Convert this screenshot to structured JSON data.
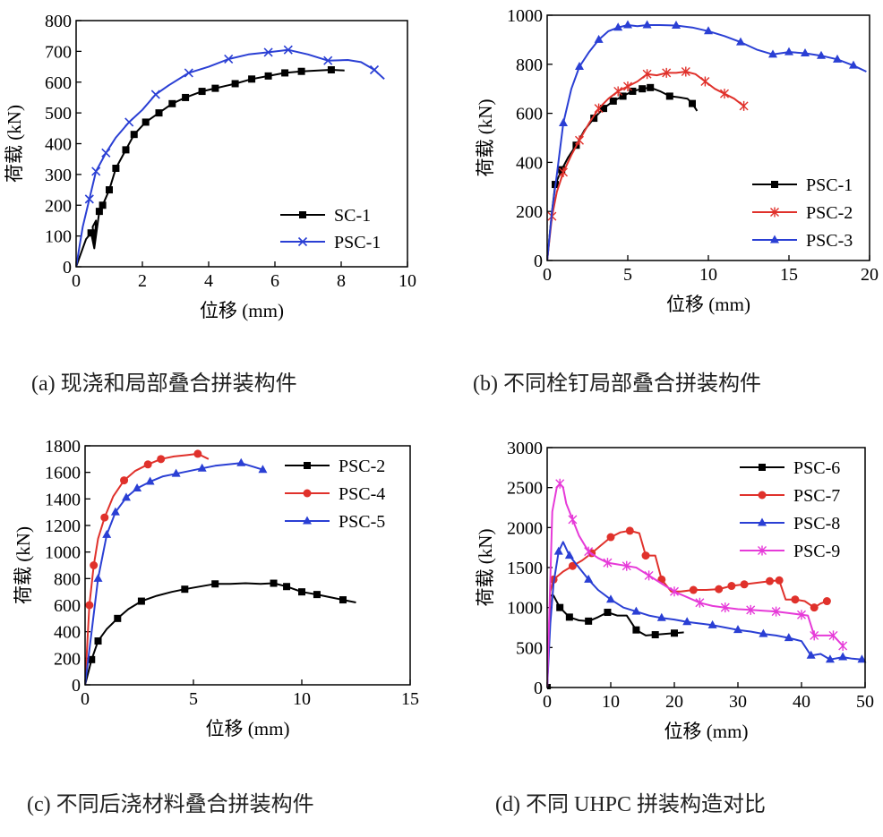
{
  "figure": {
    "captions": {
      "a": "(a) 现浇和局部叠合拼装构件",
      "b": "(b) 不同栓钉局部叠合拼装构件",
      "c": "(c) 不同后浇材料叠合拼装构件",
      "d": "(d) 不同 UHPC 拼装构造对比"
    }
  },
  "chart_data": [
    {
      "id": "a",
      "type": "line",
      "xlabel": "位移 (mm)",
      "ylabel": "荷载 (kN)",
      "xlim": [
        0,
        10
      ],
      "ylim": [
        0,
        800
      ],
      "xticks": [
        0,
        2,
        4,
        6,
        8,
        10
      ],
      "yticks": [
        0,
        100,
        200,
        300,
        400,
        500,
        600,
        700,
        800
      ],
      "legend_position": "bottom-right",
      "series": [
        {
          "name": "SC-1",
          "color": "#000000",
          "marker": "square",
          "x": [
            0,
            0.1,
            0.2,
            0.3,
            0.45,
            0.55,
            0.5,
            0.6,
            0.55,
            0.7,
            0.8,
            1.0,
            1.2,
            1.5,
            1.75,
            2.1,
            2.5,
            2.9,
            3.3,
            3.8,
            4.2,
            4.8,
            5.3,
            5.8,
            6.3,
            6.8,
            7.3,
            7.7,
            8.1
          ],
          "y": [
            0,
            30,
            60,
            90,
            110,
            60,
            130,
            150,
            60,
            180,
            200,
            250,
            320,
            380,
            430,
            470,
            500,
            530,
            550,
            570,
            580,
            595,
            610,
            620,
            630,
            635,
            638,
            640,
            638
          ],
          "marker_indices": [
            4,
            9,
            10,
            11,
            12,
            13,
            14,
            15,
            16,
            17,
            18,
            19,
            20,
            21,
            22,
            23,
            24,
            25,
            27
          ]
        },
        {
          "name": "PSC-1",
          "color": "#2a3fd4",
          "marker": "x",
          "x": [
            0,
            0.2,
            0.4,
            0.6,
            0.9,
            1.2,
            1.6,
            2.0,
            2.4,
            2.8,
            3.4,
            4.0,
            4.6,
            5.2,
            5.8,
            6.4,
            7.0,
            7.6,
            8.2,
            8.6,
            9.0,
            9.3
          ],
          "y": [
            0,
            130,
            220,
            310,
            370,
            420,
            470,
            510,
            560,
            590,
            630,
            650,
            675,
            690,
            697,
            705,
            690,
            670,
            672,
            665,
            640,
            610
          ],
          "marker_indices": [
            2,
            3,
            4,
            6,
            8,
            10,
            12,
            14,
            15,
            17,
            20
          ]
        }
      ]
    },
    {
      "id": "b",
      "type": "line",
      "xlabel": "位移 (mm)",
      "ylabel": "荷载 (kN)",
      "xlim": [
        0,
        20
      ],
      "ylim": [
        0,
        1000
      ],
      "xticks": [
        0,
        5,
        10,
        15,
        20
      ],
      "yticks": [
        0,
        200,
        400,
        600,
        800,
        1000
      ],
      "legend_position": "bottom-right",
      "series": [
        {
          "name": "PSC-1",
          "color": "#000000",
          "marker": "square",
          "x": [
            0,
            0.3,
            0.5,
            0.9,
            1.3,
            1.8,
            2.3,
            2.9,
            3.5,
            4.1,
            4.7,
            5.3,
            5.9,
            6.4,
            7.0,
            7.6,
            8.2,
            8.7,
            9.0,
            9.3
          ],
          "y": [
            0,
            200,
            310,
            370,
            420,
            470,
            530,
            580,
            620,
            650,
            670,
            690,
            700,
            705,
            690,
            670,
            665,
            660,
            640,
            610
          ],
          "marker_indices": [
            2,
            3,
            5,
            7,
            8,
            9,
            10,
            11,
            12,
            13,
            15,
            18
          ]
        },
        {
          "name": "PSC-2",
          "color": "#e0312b",
          "marker": "asterisk",
          "x": [
            0,
            0.3,
            0.6,
            1.0,
            1.5,
            2.0,
            2.6,
            3.2,
            3.8,
            4.4,
            5.0,
            5.6,
            6.2,
            6.8,
            7.4,
            8.0,
            8.6,
            9.2,
            9.8,
            10.4,
            11.0,
            11.6,
            12.2
          ],
          "y": [
            0,
            180,
            280,
            360,
            430,
            490,
            560,
            620,
            660,
            690,
            710,
            730,
            760,
            755,
            765,
            765,
            770,
            760,
            730,
            700,
            680,
            660,
            630
          ],
          "marker_indices": [
            1,
            3,
            5,
            7,
            9,
            10,
            12,
            14,
            16,
            18,
            20,
            22
          ]
        },
        {
          "name": "PSC-3",
          "color": "#2a3fd4",
          "marker": "triangle",
          "x": [
            0,
            0.3,
            0.6,
            1.0,
            1.5,
            2.0,
            2.6,
            3.2,
            3.8,
            4.4,
            5.0,
            5.6,
            6.2,
            7.0,
            8.0,
            9.0,
            10.0,
            11.0,
            12.0,
            13.0,
            14.0,
            15.0,
            16.0,
            17.0,
            18.0,
            19.0,
            19.8
          ],
          "y": [
            0,
            200,
            350,
            560,
            700,
            790,
            850,
            900,
            935,
            950,
            960,
            955,
            960,
            960,
            958,
            950,
            935,
            915,
            890,
            860,
            840,
            850,
            845,
            835,
            820,
            795,
            770
          ],
          "marker_indices": [
            3,
            5,
            7,
            9,
            10,
            12,
            14,
            16,
            18,
            20,
            21,
            22,
            23,
            24,
            25
          ]
        }
      ]
    },
    {
      "id": "c",
      "type": "line",
      "xlabel": "位移 (mm)",
      "ylabel": "荷载 (kN)",
      "xlim": [
        0,
        15
      ],
      "ylim": [
        0,
        1800
      ],
      "xticks": [
        0,
        5,
        10,
        15
      ],
      "yticks": [
        0,
        200,
        400,
        600,
        800,
        1000,
        1200,
        1400,
        1600,
        1800
      ],
      "legend_position": "top-right",
      "series": [
        {
          "name": "PSC-2",
          "color": "#000000",
          "marker": "square",
          "x": [
            0,
            0.3,
            0.6,
            1.0,
            1.5,
            2.0,
            2.6,
            3.3,
            4.0,
            4.6,
            5.3,
            6.0,
            6.7,
            7.4,
            8.1,
            8.7,
            9.3,
            10.0,
            10.7,
            11.3,
            11.9,
            12.5
          ],
          "y": [
            0,
            190,
            330,
            420,
            500,
            570,
            630,
            670,
            700,
            720,
            740,
            760,
            760,
            765,
            760,
            765,
            740,
            700,
            680,
            660,
            640,
            620
          ],
          "marker_indices": [
            1,
            2,
            4,
            6,
            9,
            11,
            15,
            16,
            17,
            18,
            20
          ]
        },
        {
          "name": "PSC-4",
          "color": "#e0312b",
          "marker": "circle",
          "x": [
            0,
            0.2,
            0.4,
            0.6,
            0.9,
            1.3,
            1.8,
            2.3,
            2.9,
            3.5,
            4.1,
            4.7,
            5.2,
            5.7
          ],
          "y": [
            0,
            600,
            900,
            1100,
            1260,
            1420,
            1540,
            1610,
            1660,
            1700,
            1720,
            1730,
            1740,
            1700
          ],
          "marker_indices": [
            1,
            2,
            4,
            6,
            8,
            9,
            12
          ]
        },
        {
          "name": "PSC-5",
          "color": "#2a3fd4",
          "marker": "triangle",
          "x": [
            0,
            0.3,
            0.6,
            1.0,
            1.4,
            1.9,
            2.4,
            3.0,
            3.6,
            4.2,
            4.8,
            5.4,
            6.0,
            6.6,
            7.2,
            7.8,
            8.2
          ],
          "y": [
            0,
            400,
            800,
            1130,
            1300,
            1410,
            1480,
            1530,
            1570,
            1590,
            1610,
            1630,
            1650,
            1660,
            1670,
            1640,
            1620
          ],
          "marker_indices": [
            2,
            3,
            4,
            5,
            6,
            7,
            9,
            11,
            14,
            16
          ]
        }
      ]
    },
    {
      "id": "d",
      "type": "line",
      "xlabel": "位移 (mm)",
      "ylabel": "荷载 (kN)",
      "xlim": [
        0,
        50
      ],
      "ylim": [
        0,
        3000
      ],
      "xticks": [
        0,
        10,
        20,
        30,
        40,
        50
      ],
      "yticks": [
        0,
        500,
        1000,
        1500,
        2000,
        2500,
        3000
      ],
      "legend_position": "top-right",
      "series": [
        {
          "name": "PSC-6",
          "color": "#000000",
          "marker": "square",
          "x": [
            0,
            0.5,
            1.0,
            2.0,
            3.5,
            5.0,
            6.5,
            8.0,
            9.5,
            11.0,
            12.5,
            14.0,
            15.5,
            17.0,
            18.5,
            20.0,
            21.5
          ],
          "y": [
            0,
            1150,
            1150,
            1000,
            880,
            840,
            830,
            880,
            940,
            900,
            900,
            720,
            650,
            660,
            670,
            680,
            690
          ],
          "marker_indices": [
            0,
            3,
            4,
            6,
            8,
            11,
            13,
            15
          ]
        },
        {
          "name": "PSC-7",
          "color": "#e0312b",
          "marker": "circle",
          "x": [
            0,
            0.5,
            1.0,
            2.5,
            4.0,
            5.5,
            7.0,
            8.5,
            10.0,
            11.5,
            13.0,
            14.5,
            15.5,
            17.0,
            18.0,
            19.5,
            21.0,
            23.0,
            25.0,
            27.0,
            29.0,
            31.0,
            33.0,
            35.0,
            36.5,
            37.5,
            39.0,
            40.5,
            42.0,
            43.0,
            44.0
          ],
          "y": [
            0,
            1200,
            1350,
            1450,
            1520,
            1590,
            1680,
            1780,
            1880,
            1940,
            1960,
            1930,
            1650,
            1650,
            1350,
            1200,
            1200,
            1220,
            1220,
            1230,
            1270,
            1290,
            1310,
            1330,
            1340,
            1100,
            1100,
            1080,
            1000,
            1050,
            1080
          ],
          "marker_indices": [
            2,
            4,
            6,
            8,
            10,
            12,
            14,
            17,
            19,
            20,
            21,
            23,
            24,
            26,
            28,
            30
          ]
        },
        {
          "name": "PSC-8",
          "color": "#2a3fd4",
          "marker": "triangle",
          "x": [
            0,
            0.5,
            1.0,
            1.8,
            2.5,
            3.5,
            5.0,
            6.5,
            8.0,
            10.0,
            12.0,
            14.0,
            16.0,
            18.0,
            20.0,
            22.0,
            24.0,
            26.0,
            28.0,
            30.0,
            32.0,
            34.0,
            36.0,
            38.0,
            40.0,
            41.5,
            43.0,
            44.5,
            46.5,
            48.0,
            49.5
          ],
          "y": [
            0,
            800,
            1300,
            1700,
            1820,
            1650,
            1500,
            1350,
            1220,
            1100,
            1000,
            950,
            900,
            870,
            850,
            820,
            800,
            780,
            750,
            720,
            700,
            670,
            650,
            620,
            580,
            400,
            420,
            350,
            380,
            360,
            350
          ],
          "marker_indices": [
            3,
            5,
            7,
            9,
            11,
            13,
            15,
            17,
            19,
            21,
            23,
            25,
            27,
            28,
            30
          ]
        },
        {
          "name": "PSC-9",
          "color": "#e63ad8",
          "marker": "asterisk",
          "x": [
            0,
            0.8,
            1.5,
            2.0,
            2.5,
            3.0,
            4.0,
            5.0,
            6.5,
            8.0,
            9.5,
            11.0,
            12.5,
            14.0,
            16.0,
            18.0,
            20.0,
            22.0,
            24.0,
            26.0,
            28.0,
            30.0,
            32.0,
            34.0,
            36.0,
            38.0,
            40.0,
            41.0,
            42.0,
            43.5,
            45.0,
            46.5
          ],
          "y": [
            0,
            2200,
            2500,
            2550,
            2500,
            2300,
            2100,
            1900,
            1700,
            1620,
            1560,
            1540,
            1520,
            1500,
            1400,
            1300,
            1200,
            1130,
            1060,
            1020,
            1000,
            980,
            970,
            960,
            950,
            930,
            910,
            900,
            650,
            650,
            650,
            520
          ],
          "marker_indices": [
            3,
            6,
            8,
            10,
            12,
            14,
            16,
            18,
            20,
            22,
            24,
            26,
            28,
            30,
            31
          ]
        }
      ]
    }
  ]
}
